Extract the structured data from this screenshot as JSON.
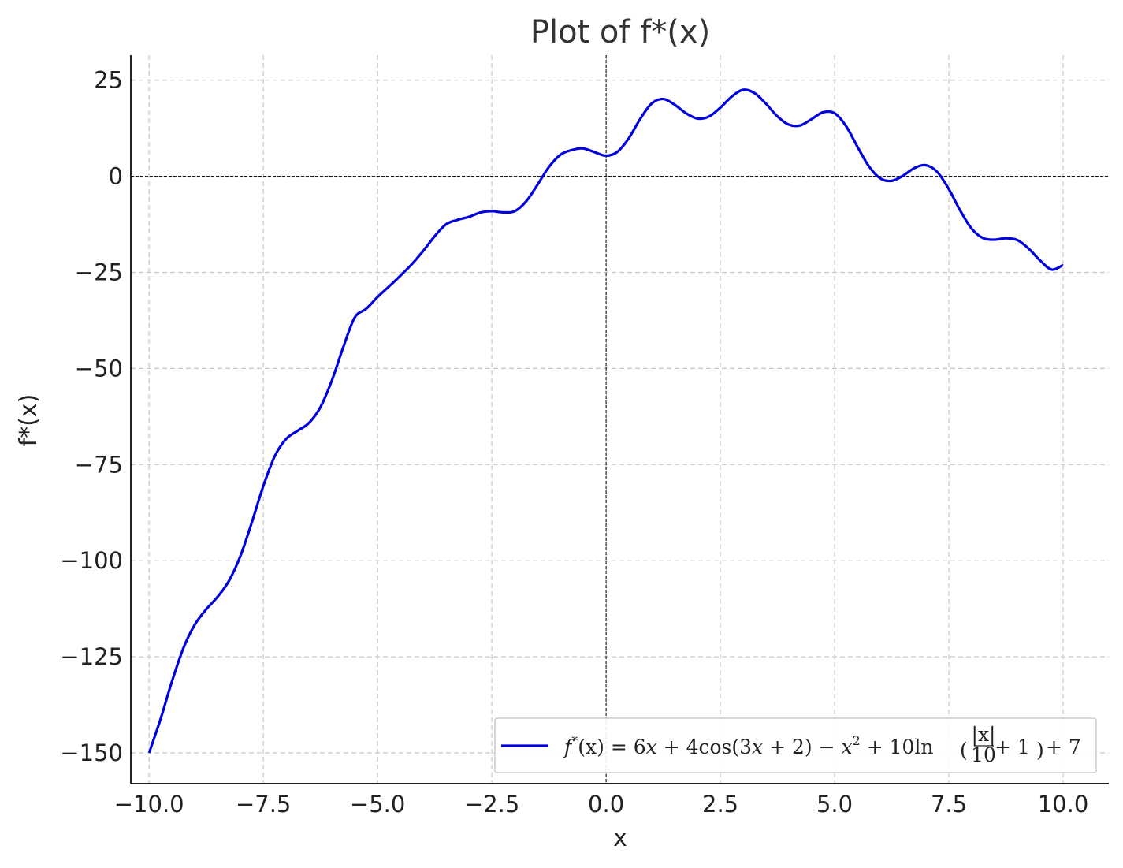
{
  "chart_data": {
    "type": "line",
    "title": "Plot of f*(x)",
    "xlabel": "x",
    "ylabel": "f*(x)",
    "xlim": [
      -10.4,
      11.0
    ],
    "ylim": [
      -158,
      31.5
    ],
    "xticks": [
      -10.0,
      -7.5,
      -5.0,
      -2.5,
      0.0,
      2.5,
      5.0,
      7.5,
      10.0
    ],
    "xtick_labels": [
      "−10.0",
      "−7.5",
      "−5.0",
      "−2.5",
      "0.0",
      "2.5",
      "5.0",
      "7.5",
      "10.0"
    ],
    "yticks": [
      25,
      0,
      -25,
      -50,
      -75,
      -100,
      -125,
      -150
    ],
    "ytick_labels": [
      "25",
      "0",
      "−25",
      "−50",
      "−75",
      "−100",
      "−125",
      "−150"
    ],
    "grid": true,
    "reference_lines": {
      "x": 0,
      "y": 0
    },
    "legend_position": "bottom-right",
    "series": [
      {
        "name": "f*(x) = 6x + 4cos(3x + 2) − x² + 10ln(|x|/10 + 1) + 7",
        "color": "#0000dd",
        "x": [
          -10.0,
          -9.75,
          -9.5,
          -9.25,
          -9.0,
          -8.75,
          -8.5,
          -8.25,
          -8.0,
          -7.75,
          -7.5,
          -7.25,
          -7.0,
          -6.75,
          -6.5,
          -6.25,
          -6.0,
          -5.75,
          -5.5,
          -5.25,
          -5.0,
          -4.75,
          -4.5,
          -4.25,
          -4.0,
          -3.75,
          -3.5,
          -3.25,
          -3.0,
          -2.75,
          -2.5,
          -2.25,
          -2.0,
          -1.75,
          -1.5,
          -1.25,
          -1.0,
          -0.75,
          -0.5,
          -0.25,
          0.0,
          0.25,
          0.5,
          0.75,
          1.0,
          1.25,
          1.5,
          1.75,
          2.0,
          2.25,
          2.5,
          2.75,
          3.0,
          3.25,
          3.5,
          3.75,
          4.0,
          4.25,
          4.5,
          4.75,
          5.0,
          5.25,
          5.5,
          5.75,
          6.0,
          6.25,
          6.5,
          6.75,
          7.0,
          7.25,
          7.5,
          7.75,
          8.0,
          8.25,
          8.5,
          8.75,
          9.0,
          9.25,
          9.5,
          9.75,
          10.0
        ],
        "y": [
          -149.99,
          -141.23,
          -131.42,
          -122.75,
          -116.64,
          -112.66,
          -109.38,
          -105.2,
          -98.72,
          -89.95,
          -80.55,
          -72.81,
          -68.32,
          -66.2,
          -64.15,
          -60.05,
          -53.09,
          -44.41,
          -36.73,
          -34.48,
          -31.4,
          -28.67,
          -25.84,
          -22.86,
          -19.39,
          -15.58,
          -12.48,
          -11.34,
          -10.56,
          -9.42,
          -9.09,
          -9.39,
          -9.09,
          -6.54,
          -2.18,
          2.44,
          5.6,
          6.83,
          7.24,
          6.26,
          5.34,
          6.39,
          9.97,
          15.0,
          18.96,
          20.1,
          18.61,
          16.38,
          15.01,
          15.53,
          17.86,
          20.74,
          22.5,
          21.63,
          18.85,
          15.57,
          13.43,
          13.24,
          14.89,
          16.66,
          16.4,
          13.05,
          7.68,
          2.61,
          -0.54,
          -1.19,
          0.18,
          2.16,
          2.88,
          1.08,
          -3.36,
          -8.95,
          -13.65,
          -16.1,
          -16.48,
          -16.1,
          -16.61,
          -18.85,
          -21.95,
          -24.26,
          -23.09
        ]
      }
    ]
  },
  "legend": {
    "entries": [
      {
        "series_index": 0,
        "label_parts": {
          "lhs_f": "f",
          "lhs_star": "*",
          "lhs_arg": "(x)",
          "eq": " = 6",
          "x1": "x",
          "cos_part": " + 4cos(3",
          "x2": "x",
          "cos_close": " + 2) − ",
          "x3": "x",
          "sq": "2",
          "ln_part": " + 10ln",
          "frac_num": "|x|",
          "frac_den": "10",
          "ln_tail": " + 1",
          "end": " + 7",
          "paren_open": "(",
          "paren_close": ")"
        }
      }
    ]
  }
}
